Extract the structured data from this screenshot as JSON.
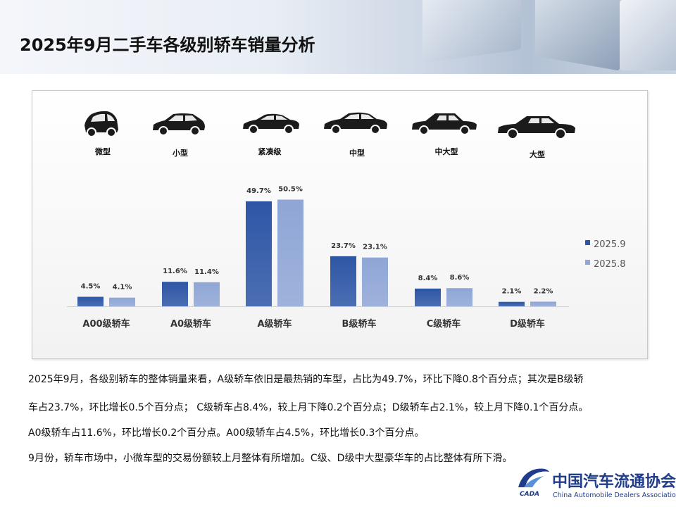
{
  "title": "2025年9月二手车各级别轿车销量分析",
  "car_types": [
    {
      "label": "微型",
      "icon": "micro-car-icon"
    },
    {
      "label": "小型",
      "icon": "hatchback-car-icon"
    },
    {
      "label": "紧凑级",
      "icon": "compact-sedan-icon"
    },
    {
      "label": "中型",
      "icon": "midsize-sedan-icon"
    },
    {
      "label": "中大型",
      "icon": "large-sedan-icon"
    },
    {
      "label": "大型",
      "icon": "full-size-sedan-icon"
    }
  ],
  "chart_data": {
    "type": "bar",
    "categories": [
      "A00级轿车",
      "A0级轿车",
      "A级轿车",
      "B级轿车",
      "C级轿车",
      "D级轿车"
    ],
    "series": [
      {
        "name": "2025.9",
        "values": [
          4.5,
          11.6,
          49.7,
          23.7,
          8.4,
          2.1
        ],
        "labels": [
          "4.5%",
          "11.6%",
          "49.7%",
          "23.7%",
          "8.4%",
          "2.1%"
        ],
        "color": "#2e56a6"
      },
      {
        "name": "2025.8",
        "values": [
          4.1,
          11.4,
          50.5,
          23.1,
          8.6,
          2.2
        ],
        "labels": [
          "4.1%",
          "11.4%",
          "50.5%",
          "23.1%",
          "8.6%",
          "2.2%"
        ],
        "color": "#8fa6d6"
      }
    ],
    "legend_position": "right",
    "grid": false,
    "ylim": [
      0,
      60
    ]
  },
  "paragraphs": [
    "2025年9月，各级别轿车的整体销量来看，A级轿车依旧是最热销的车型，占比为49.7%，环比下降0.8个百分点；其次是B级轿",
    "车占23.7%，环比增长0.5个百分点； C级轿车占8.4%，较上月下降0.2个百分点；D级轿车占2.1%，较上月下降0.1个百分点。",
    "A0级轿车占11.6%，环比增长0.2个百分点。A00级轿车占4.5%，环比增长0.3个百分点。",
    "9月份，轿车市场中，小微车型的交易份额较上月整体有所增加。C级、D级中大型豪华车的占比整体有所下滑。"
  ],
  "logo": {
    "name": "中国汽车流通协会",
    "english": "China Automobile Dealers Association",
    "abbr": "CADA"
  }
}
